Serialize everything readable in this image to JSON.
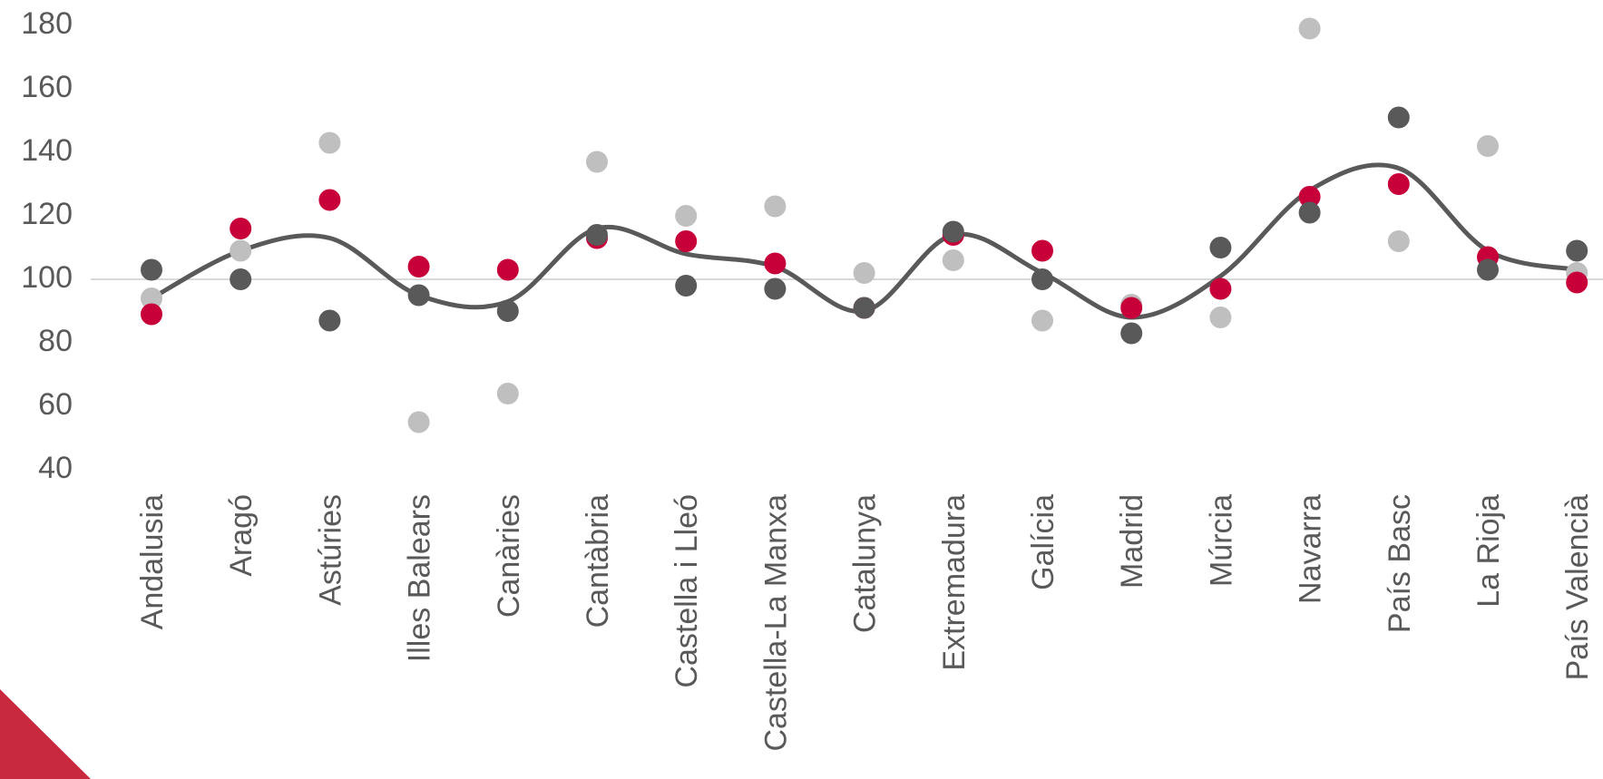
{
  "chart_data": {
    "type": "scatter",
    "title": "",
    "xlabel": "",
    "ylabel": "",
    "ylim": [
      40,
      180
    ],
    "yticks": [
      40,
      60,
      80,
      100,
      120,
      140,
      160,
      180
    ],
    "reference_line": 100,
    "grid": false,
    "legend": "none",
    "categories": [
      "Andalusia",
      "Aragó",
      "Astúries",
      "Illes Balears",
      "Canàries",
      "Cantàbria",
      "Castella i Lleó",
      "Castella-La Manxa",
      "Catalunya",
      "Extremadura",
      "Galícia",
      "Madrid",
      "Múrcia",
      "Navarra",
      "País Basc",
      "La Rioja",
      "País Valencià"
    ],
    "series": [
      {
        "color": "#c8003a",
        "marker": "dot",
        "values": [
          89,
          116,
          125,
          104,
          103,
          113,
          112,
          105,
          91,
          114,
          109,
          91,
          97,
          126,
          130,
          107,
          99
        ]
      },
      {
        "color": "#bfbfbf",
        "marker": "dot",
        "values": [
          94,
          109,
          143,
          55,
          64,
          137,
          120,
          123,
          102,
          106,
          87,
          92,
          88,
          179,
          112,
          142,
          102
        ]
      },
      {
        "color": "#595959",
        "marker": "dot",
        "values": [
          103,
          100,
          87,
          95,
          90,
          114,
          98,
          97,
          91,
          115,
          100,
          83,
          110,
          121,
          151,
          103,
          109
        ]
      },
      {
        "color": "#595959",
        "marker": "smooth-line",
        "values": [
          94,
          109,
          113,
          95,
          93,
          116,
          108,
          104,
          90,
          114,
          102,
          88,
          101,
          128,
          135,
          109,
          103
        ]
      }
    ],
    "decoration_color": "#c8293f"
  }
}
